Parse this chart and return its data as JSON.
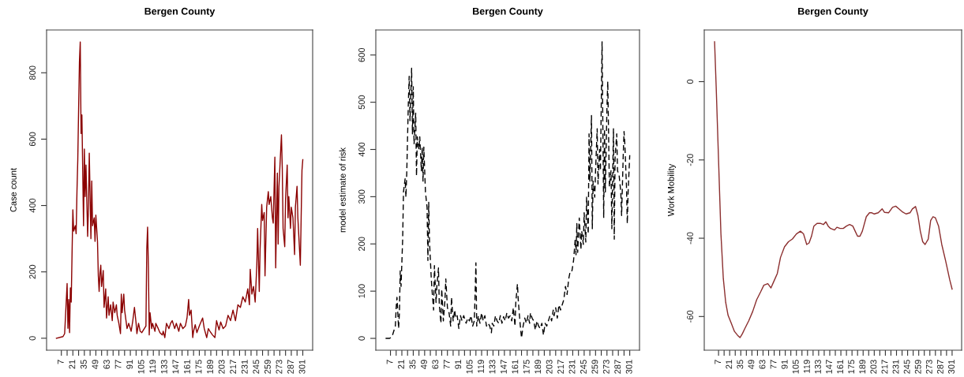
{
  "chart_data": [
    {
      "type": "line",
      "title": "Bergen County",
      "ylabel": "Case count",
      "x": [
        1,
        9,
        11,
        14,
        15,
        16,
        17,
        18,
        19,
        20,
        21,
        22,
        24,
        25,
        26,
        27,
        28,
        29,
        30,
        31,
        32,
        34,
        35,
        36,
        37,
        39,
        40,
        41,
        43,
        44,
        45,
        47,
        48,
        49,
        51,
        52,
        53,
        54,
        55,
        56,
        58,
        59,
        61,
        62,
        64,
        65,
        67,
        69,
        70,
        72,
        74,
        75,
        77,
        79,
        80,
        81,
        83,
        84,
        87,
        89,
        92,
        94,
        96,
        98,
        99,
        101,
        103,
        105,
        108,
        110,
        111,
        112,
        113,
        114,
        115,
        117,
        118,
        121,
        122,
        125,
        127,
        130,
        131,
        133,
        135,
        138,
        140,
        142,
        145,
        147,
        150,
        152,
        155,
        158,
        160,
        162,
        163,
        165,
        167,
        168,
        170,
        172,
        175,
        177,
        179,
        181,
        184,
        186,
        188,
        191,
        194,
        196,
        199,
        201,
        204,
        207,
        210,
        213,
        216,
        219,
        222,
        225,
        228,
        231,
        234,
        236,
        237,
        239,
        241,
        243,
        245,
        246,
        248,
        249,
        251,
        252,
        254,
        255,
        257,
        259,
        260,
        262,
        264,
        265,
        267,
        268,
        270,
        271,
        272,
        274,
        275,
        276,
        277,
        279,
        280,
        282,
        283,
        284,
        286,
        287,
        289,
        291,
        292,
        294,
        295,
        297,
        298,
        299,
        300,
        301
      ],
      "series": [
        {
          "color": "#8b0000",
          "line_style": "solid",
          "values": [
            0,
            5,
            14,
            165,
            30,
            117,
            17,
            152,
            109,
            252,
            387,
            323,
            339,
            315,
            442,
            538,
            689,
            832,
            893,
            617,
            673,
            339,
            570,
            427,
            522,
            307,
            395,
            558,
            300,
            474,
            339,
            363,
            292,
            371,
            292,
            188,
            141,
            196,
            220,
            156,
            204,
            93,
            149,
            61,
            125,
            69,
            101,
            53,
            109,
            77,
            101,
            69,
            45,
            14,
            133,
            77,
            133,
            85,
            29,
            45,
            21,
            53,
            93,
            45,
            14,
            45,
            21,
            17,
            29,
            37,
            268,
            335,
            212,
            10,
            77,
            29,
            45,
            21,
            45,
            29,
            17,
            10,
            21,
            2,
            45,
            29,
            45,
            53,
            29,
            45,
            21,
            45,
            29,
            37,
            61,
            117,
            69,
            85,
            2,
            21,
            41,
            17,
            37,
            49,
            61,
            29,
            2,
            29,
            21,
            10,
            2,
            53,
            25,
            49,
            29,
            37,
            69,
            53,
            85,
            53,
            101,
            93,
            125,
            109,
            149,
            101,
            208,
            133,
            156,
            109,
            220,
            331,
            141,
            268,
            403,
            355,
            379,
            188,
            395,
            442,
            403,
            427,
            363,
            347,
            546,
            212,
            498,
            284,
            458,
            562,
            613,
            514,
            331,
            276,
            419,
            522,
            363,
            427,
            331,
            395,
            363,
            252,
            395,
            458,
            363,
            268,
            220,
            363,
            506,
            538
          ]
        }
      ],
      "xlim": [
        -11,
        313
      ],
      "ylim": [
        -36,
        929
      ],
      "xticks": [
        7,
        {
          "value": 14,
          "label": null
        },
        21,
        {
          "value": 28,
          "label": null
        },
        35,
        {
          "value": 42,
          "label": null
        },
        49,
        {
          "value": 56,
          "label": null
        },
        63,
        {
          "value": 70,
          "label": null
        },
        77,
        {
          "value": 84,
          "label": null
        },
        91,
        {
          "value": 98,
          "label": null
        },
        105,
        {
          "value": 112,
          "label": null
        },
        119,
        {
          "value": 126,
          "label": null
        },
        133,
        {
          "value": 140,
          "label": null
        },
        147,
        {
          "value": 154,
          "label": null
        },
        161,
        {
          "value": 168,
          "label": null
        },
        175,
        {
          "value": 182,
          "label": null
        },
        189,
        {
          "value": 196,
          "label": null
        },
        203,
        {
          "value": 210,
          "label": null
        },
        217,
        {
          "value": 224,
          "label": null
        },
        231,
        {
          "value": 238,
          "label": null
        },
        245,
        {
          "value": 252,
          "label": null
        },
        259,
        {
          "value": 266,
          "label": null
        },
        273,
        {
          "value": 280,
          "label": null
        },
        287,
        {
          "value": 294,
          "label": null
        },
        301
      ],
      "yticks": [
        0,
        200,
        400,
        600,
        800
      ]
    },
    {
      "type": "line",
      "title": "Bergen County",
      "ylabel": "model estimate of risk",
      "x": [
        1,
        6,
        9,
        13,
        14,
        15,
        17,
        18,
        19,
        20,
        22,
        23,
        25,
        26,
        27,
        29,
        30,
        31,
        33,
        34,
        35,
        36,
        38,
        39,
        40,
        42,
        43,
        45,
        46,
        47,
        48,
        50,
        52,
        53,
        54,
        55,
        57,
        58,
        60,
        61,
        63,
        64,
        66,
        67,
        69,
        70,
        72,
        74,
        75,
        77,
        79,
        81,
        82,
        84,
        86,
        87,
        89,
        91,
        93,
        95,
        97,
        100,
        102,
        104,
        106,
        108,
        110,
        111,
        112,
        113,
        115,
        117,
        119,
        121,
        123,
        125,
        127,
        129,
        131,
        132,
        134,
        136,
        138,
        140,
        142,
        144,
        146,
        148,
        150,
        152,
        154,
        156,
        158,
        160,
        161,
        163,
        164,
        166,
        168,
        170,
        172,
        174,
        176,
        178,
        179,
        181,
        183,
        185,
        187,
        189,
        191,
        193,
        195,
        197,
        199,
        201,
        203,
        205,
        207,
        208,
        210,
        212,
        214,
        216,
        218,
        220,
        222,
        224,
        226,
        228,
        230,
        232,
        234,
        235,
        236,
        237,
        239,
        241,
        242,
        244,
        245,
        247,
        248,
        250,
        251,
        252,
        254,
        255,
        256,
        258,
        259,
        261,
        262,
        264,
        265,
        266,
        267,
        269,
        270,
        271,
        273,
        274,
        275,
        276,
        278,
        279,
        281,
        282,
        283,
        285,
        286,
        288,
        290,
        291,
        293,
        294,
        295,
        297,
        298,
        299,
        301
      ],
      "series": [
        {
          "color": "#000000",
          "line_style": "dashed",
          "values": [
            0,
            0,
            4,
            26,
            65,
            87,
            21,
            54,
            143,
            110,
            210,
            310,
            338,
            299,
            349,
            500,
            555,
            461,
            572,
            433,
            533,
            411,
            477,
            344,
            427,
            400,
            427,
            355,
            405,
            333,
            405,
            310,
            277,
            165,
            288,
            204,
            132,
            104,
            60,
            154,
            76,
            110,
            149,
            71,
            32,
            104,
            37,
            82,
            126,
            65,
            54,
            26,
            87,
            37,
            60,
            43,
            48,
            21,
            48,
            37,
            48,
            32,
            43,
            37,
            48,
            26,
            37,
            93,
            160,
            26,
            48,
            32,
            54,
            37,
            48,
            26,
            32,
            26,
            12,
            32,
            26,
            48,
            37,
            32,
            48,
            32,
            46,
            37,
            54,
            43,
            48,
            37,
            65,
            26,
            76,
            115,
            82,
            37,
            1,
            26,
            43,
            32,
            48,
            32,
            54,
            43,
            37,
            18,
            37,
            26,
            21,
            32,
            7,
            32,
            26,
            37,
            48,
            37,
            60,
            48,
            65,
            43,
            71,
            60,
            71,
            82,
            110,
            93,
            126,
            143,
            143,
            165,
            210,
            177,
            243,
            182,
            255,
            188,
            227,
            199,
            266,
            204,
            299,
            221,
            433,
            333,
            472,
            232,
            333,
            299,
            355,
            444,
            327,
            400,
            355,
            494,
            628,
            255,
            444,
            310,
            489,
            544,
            433,
            321,
            355,
            232,
            444,
            210,
            383,
            433,
            355,
            344,
            310,
            260,
            388,
            438,
            411,
            321,
            243,
            310,
            388
          ]
        }
      ],
      "xlim": [
        -11,
        313
      ],
      "ylim": [
        -25,
        653
      ],
      "xticks": [
        7,
        {
          "value": 14,
          "label": null
        },
        21,
        {
          "value": 28,
          "label": null
        },
        35,
        {
          "value": 42,
          "label": null
        },
        49,
        {
          "value": 56,
          "label": null
        },
        63,
        {
          "value": 70,
          "label": null
        },
        77,
        {
          "value": 84,
          "label": null
        },
        91,
        {
          "value": 98,
          "label": null
        },
        105,
        {
          "value": 112,
          "label": null
        },
        119,
        {
          "value": 126,
          "label": null
        },
        133,
        {
          "value": 140,
          "label": null
        },
        147,
        {
          "value": 154,
          "label": null
        },
        161,
        {
          "value": 168,
          "label": null
        },
        175,
        {
          "value": 182,
          "label": null
        },
        189,
        {
          "value": 196,
          "label": null
        },
        203,
        {
          "value": 210,
          "label": null
        },
        217,
        {
          "value": 224,
          "label": null
        },
        231,
        {
          "value": 238,
          "label": null
        },
        245,
        {
          "value": 252,
          "label": null
        },
        259,
        {
          "value": 266,
          "label": null
        },
        273,
        {
          "value": 280,
          "label": null
        },
        287,
        {
          "value": 294,
          "label": null
        },
        301
      ],
      "yticks": [
        0,
        100,
        200,
        300,
        400,
        500,
        600
      ]
    },
    {
      "type": "line",
      "title": "Bergen County",
      "ylabel": "Work Mobility",
      "x": [
        2,
        4,
        7,
        10,
        13,
        16,
        19,
        23,
        27,
        31,
        34,
        37,
        40,
        45,
        50,
        55,
        60,
        64,
        69,
        73,
        76,
        81,
        85,
        90,
        95,
        100,
        105,
        110,
        114,
        118,
        121,
        124,
        127,
        131,
        135,
        139,
        142,
        145,
        148,
        153,
        156,
        160,
        164,
        168,
        172,
        176,
        179,
        182,
        185,
        188,
        193,
        197,
        200,
        203,
        208,
        213,
        216,
        221,
        226,
        230,
        234,
        238,
        243,
        248,
        251,
        255,
        258,
        261,
        264,
        267,
        271,
        274,
        277,
        280,
        284,
        288,
        293,
        298,
        301
      ],
      "series": [
        {
          "color": "#8b2e2e",
          "line_style": "solid",
          "values": [
            10.2,
            -1.2,
            -20,
            -38.9,
            -50.3,
            -56.4,
            -59.7,
            -61.7,
            -63.8,
            -64.8,
            -65.4,
            -64.4,
            -63.1,
            -61.1,
            -58.7,
            -55.7,
            -53.7,
            -52,
            -51.6,
            -52.7,
            -51.3,
            -49,
            -44.9,
            -42.2,
            -40.9,
            -40.2,
            -38.9,
            -38.2,
            -38.9,
            -41.6,
            -41.2,
            -39.5,
            -36.9,
            -36.2,
            -36.2,
            -36.5,
            -35.8,
            -36.9,
            -37.5,
            -37.9,
            -37.2,
            -37.5,
            -37.5,
            -36.9,
            -36.5,
            -36.9,
            -38.2,
            -39.5,
            -39.5,
            -38.2,
            -34.5,
            -33.5,
            -33.5,
            -33.8,
            -33.5,
            -32.5,
            -33.4,
            -33.5,
            -32.1,
            -31.8,
            -32.5,
            -33.2,
            -33.8,
            -33.5,
            -32.5,
            -31.9,
            -34.2,
            -38.2,
            -40.9,
            -41.6,
            -40.2,
            -35.5,
            -34.5,
            -34.8,
            -36.9,
            -41.6,
            -45.9,
            -50.6,
            -53
          ]
        }
      ],
      "xlim": [
        -11,
        313
      ],
      "ylim": [
        -68.6,
        13.2
      ],
      "xticks": [
        7,
        {
          "value": 14,
          "label": null
        },
        21,
        {
          "value": 28,
          "label": null
        },
        35,
        {
          "value": 42,
          "label": null
        },
        49,
        {
          "value": 56,
          "label": null
        },
        63,
        {
          "value": 70,
          "label": null
        },
        77,
        {
          "value": 84,
          "label": null
        },
        91,
        {
          "value": 98,
          "label": null
        },
        105,
        {
          "value": 112,
          "label": null
        },
        119,
        {
          "value": 126,
          "label": null
        },
        133,
        {
          "value": 140,
          "label": null
        },
        147,
        {
          "value": 154,
          "label": null
        },
        161,
        {
          "value": 168,
          "label": null
        },
        175,
        {
          "value": 182,
          "label": null
        },
        189,
        {
          "value": 196,
          "label": null
        },
        203,
        {
          "value": 210,
          "label": null
        },
        217,
        {
          "value": 224,
          "label": null
        },
        231,
        {
          "value": 238,
          "label": null
        },
        245,
        {
          "value": 252,
          "label": null
        },
        259,
        {
          "value": 266,
          "label": null
        },
        273,
        {
          "value": 280,
          "label": null
        },
        287,
        {
          "value": 294,
          "label": null
        },
        301
      ],
      "yticks": [
        0,
        -20,
        -40,
        -60
      ]
    }
  ]
}
